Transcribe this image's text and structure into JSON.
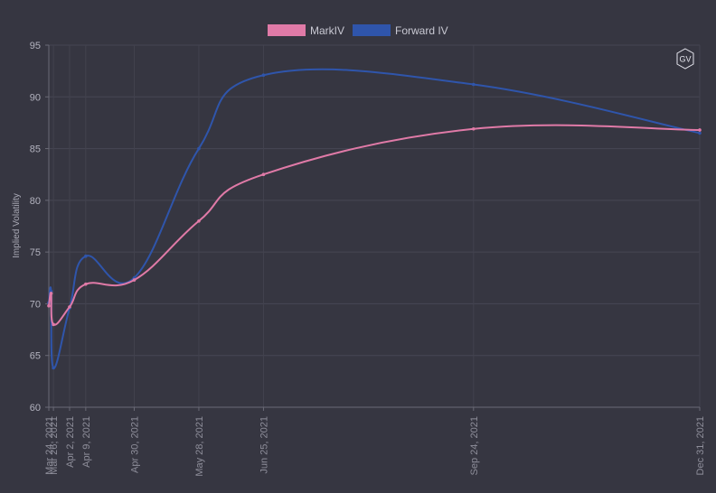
{
  "chart_data": {
    "type": "line",
    "ylabel": "Implied Volatility",
    "ylim": [
      60,
      95
    ],
    "y_ticks": [
      "95",
      "90",
      "85",
      "80",
      "75",
      "70",
      "65",
      "60"
    ],
    "x_ticks": [
      "Mar 24, 2021",
      "Mar 26, 2021",
      "Apr 2, 2021",
      "Apr 9, 2021",
      "Apr 30, 2021",
      "May 28, 2021",
      "Jun 25, 2021",
      "Sep 24, 2021",
      "Dec 31, 2021"
    ],
    "x": [
      "2021-03-24",
      "2021-03-25",
      "2021-03-26",
      "2021-04-02",
      "2021-04-09",
      "2021-04-30",
      "2021-05-28",
      "2021-06-25",
      "2021-09-24",
      "2021-12-31"
    ],
    "series": [
      {
        "name": "MarkIV",
        "color": "#e07aa7",
        "values": [
          69.8,
          71.0,
          68.0,
          69.7,
          71.9,
          72.3,
          78.0,
          82.5,
          86.9,
          86.8
        ]
      },
      {
        "name": "Forward IV",
        "color": "#2f55ab",
        "values": [
          70.1,
          71.2,
          63.8,
          69.6,
          74.6,
          72.5,
          85.0,
          92.1,
          91.2,
          86.5
        ]
      }
    ],
    "grid": true,
    "legend": "top"
  },
  "badge": {
    "text": "GV"
  }
}
